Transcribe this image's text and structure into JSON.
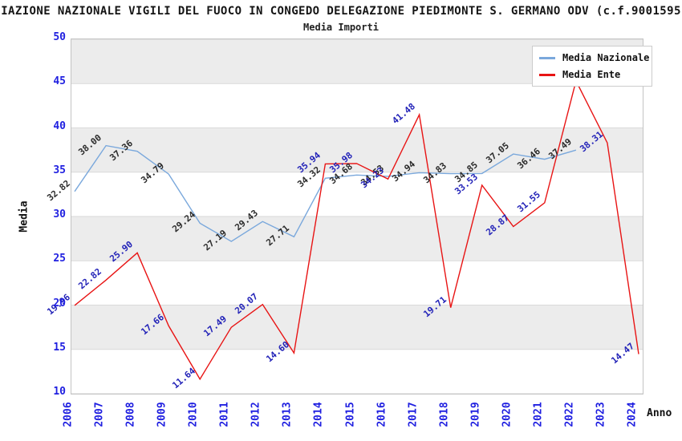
{
  "chart_data": {
    "type": "line",
    "title": "IAZIONE NAZIONALE VIGILI DEL FUOCO IN CONGEDO DELEGAZIONE PIEDIMONTE S. GERMANO ODV (c.f.9001595",
    "subtitle": "Media Importi",
    "xlabel": "Anno",
    "ylabel": "Media",
    "x_ticks": [
      "2006",
      "2007",
      "2008",
      "2009",
      "2010",
      "2011",
      "2012",
      "2013",
      "2014",
      "2015",
      "2016",
      "2017",
      "2018",
      "2019",
      "2020",
      "2021",
      "2022",
      "2023",
      "2024"
    ],
    "y_ticks": [
      "10",
      "15",
      "20",
      "25",
      "30",
      "35",
      "40",
      "45",
      "50"
    ],
    "ylim": [
      10,
      50
    ],
    "grid": "horizontal-bands-on",
    "legend_position": "top-right",
    "colors": {
      "tick_label": "#1f1fe0",
      "band": "#ececec",
      "gridline": "#d9d9d9",
      "plot_border": "#c3c3c3",
      "legend_border": "#cccccc",
      "background": "#ffffff"
    },
    "series": [
      {
        "name": "Media Nazionale",
        "color": "#7aa8dc",
        "label_color": "#2b2b2b",
        "points": [
          {
            "x": "2006",
            "v": 32.82,
            "label": "32.82"
          },
          {
            "x": "2007",
            "v": 38.0,
            "label": "38.00"
          },
          {
            "x": "2008",
            "v": 37.36,
            "label": "37.36"
          },
          {
            "x": "2009",
            "v": 34.79,
            "label": "34.79"
          },
          {
            "x": "2010",
            "v": 29.24,
            "label": "29.24"
          },
          {
            "x": "2011",
            "v": 27.19,
            "label": "27.19"
          },
          {
            "x": "2012",
            "v": 29.43,
            "label": "29.43"
          },
          {
            "x": "2013",
            "v": 27.71,
            "label": "27.71"
          },
          {
            "x": "2014",
            "v": 34.32,
            "label": "34.32"
          },
          {
            "x": "2015",
            "v": 34.68,
            "label": "34.68"
          },
          {
            "x": "2016",
            "v": 34.53,
            "label": "34.53"
          },
          {
            "x": "2017",
            "v": 34.94,
            "label": "34.94"
          },
          {
            "x": "2018",
            "v": 34.83,
            "label": "34.83"
          },
          {
            "x": "2019",
            "v": 34.85,
            "label": "34.85"
          },
          {
            "x": "2020",
            "v": 37.05,
            "label": "37.05"
          },
          {
            "x": "2021",
            "v": 36.46,
            "label": "36.46"
          },
          {
            "x": "2022",
            "v": 37.49,
            "label": "37.49"
          }
        ]
      },
      {
        "name": "Media Ente",
        "color": "#e81414",
        "label_color": "#2323b8",
        "points": [
          {
            "x": "2006",
            "v": 19.96,
            "label": "19.96"
          },
          {
            "x": "2007",
            "v": 22.82,
            "label": "22.82"
          },
          {
            "x": "2008",
            "v": 25.9,
            "label": "25.90"
          },
          {
            "x": "2009",
            "v": 17.66,
            "label": "17.66"
          },
          {
            "x": "2010",
            "v": 11.64,
            "label": "11.64"
          },
          {
            "x": "2011",
            "v": 17.49,
            "label": "17.49"
          },
          {
            "x": "2012",
            "v": 20.07,
            "label": "20.07"
          },
          {
            "x": "2013",
            "v": 14.6,
            "label": "14.60"
          },
          {
            "x": "2014",
            "v": 35.94,
            "label": "35.94"
          },
          {
            "x": "2015",
            "v": 35.98,
            "label": "35.98"
          },
          {
            "x": "2016",
            "v": 34.23,
            "label": "34.23"
          },
          {
            "x": "2017",
            "v": 41.48,
            "label": "41.48"
          },
          {
            "x": "2018",
            "v": 19.71,
            "label": "19.71"
          },
          {
            "x": "2019",
            "v": 33.53,
            "label": "33.53"
          },
          {
            "x": "2020",
            "v": 28.87,
            "label": "28.87"
          },
          {
            "x": "2021",
            "v": 31.55,
            "label": "31.55"
          },
          {
            "x": "2022",
            "v": 45.3,
            "label": ""
          },
          {
            "x": "2023",
            "v": 38.31,
            "label": "38.31"
          },
          {
            "x": "2024",
            "v": 14.47,
            "label": "14.47"
          }
        ]
      }
    ]
  }
}
